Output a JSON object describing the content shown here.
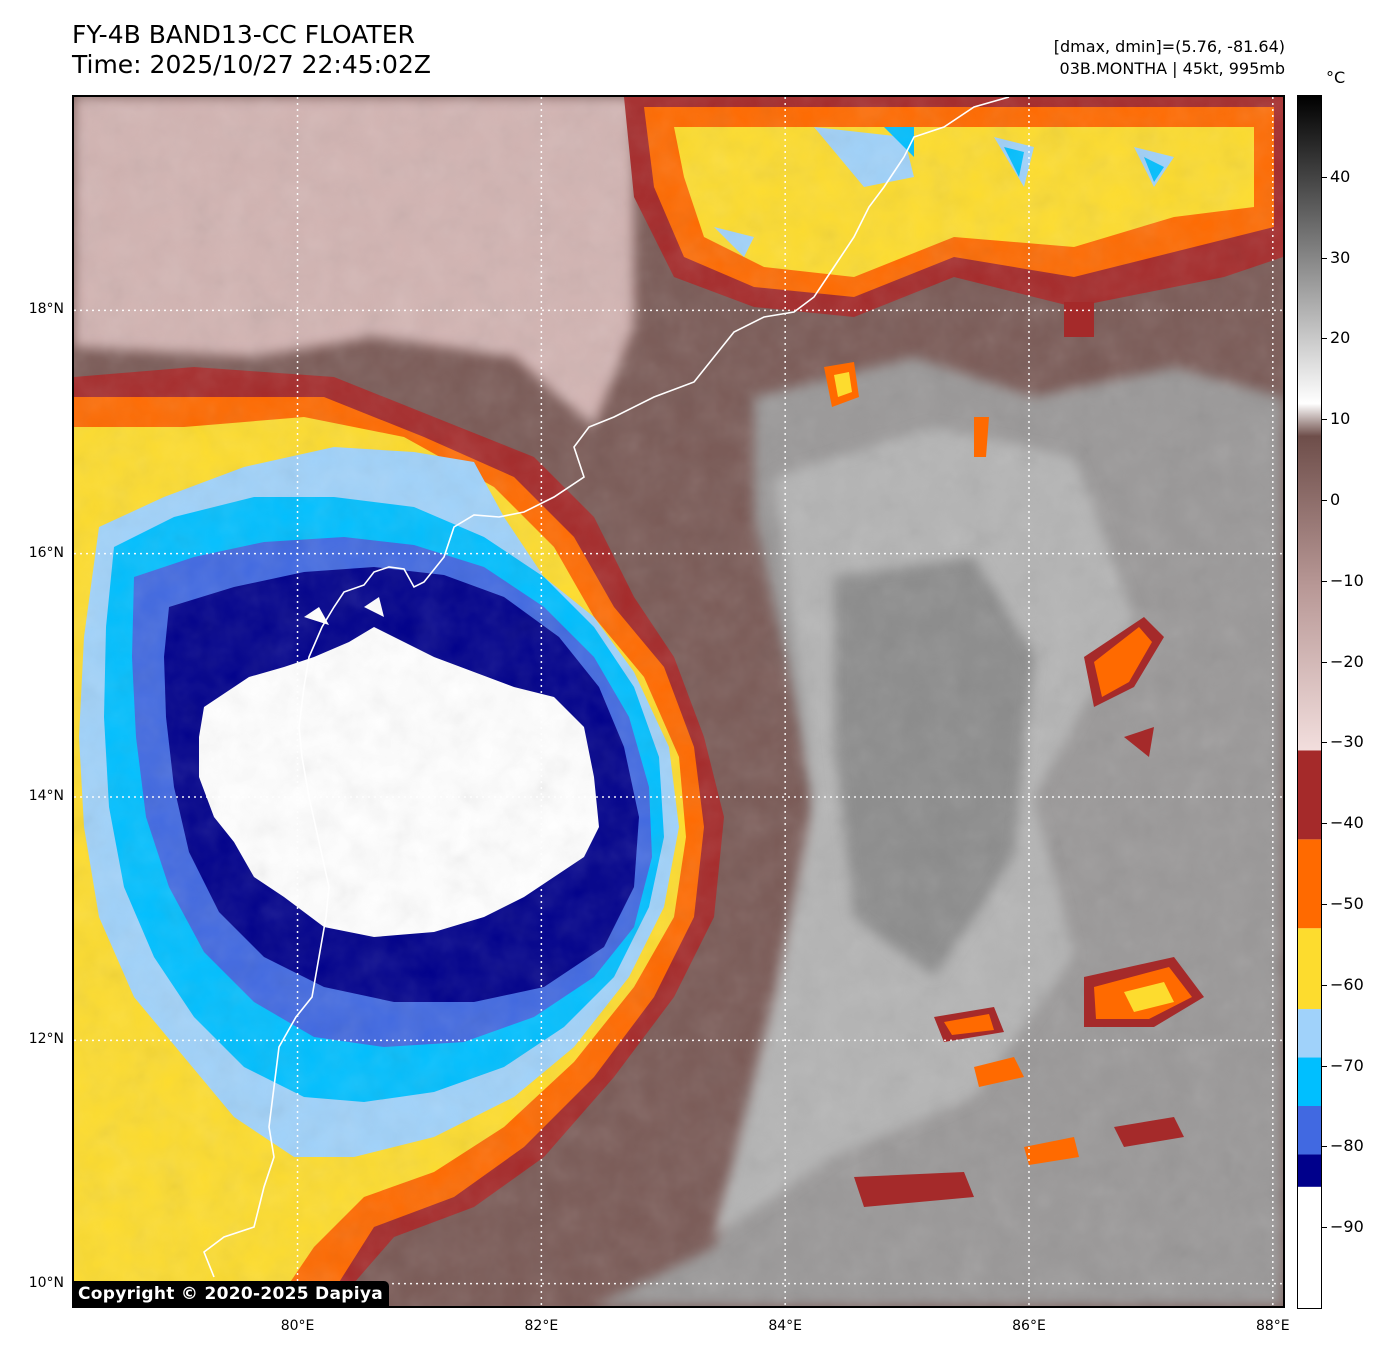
{
  "header": {
    "title_line1": "FY-4B BAND13-CC FLOATER",
    "title_line2": "Time: 2025/10/27 22:45:02Z",
    "range_text": "[dmax, dmin]=(5.76, -81.64)",
    "storm_text": "03B.MONTHA | 45kt, 995mb"
  },
  "map": {
    "lat_labels": [
      "18°N",
      "16°N",
      "14°N",
      "12°N",
      "10°N"
    ],
    "lon_labels": [
      "80°E",
      "82°E",
      "84°E",
      "86°E",
      "88°E"
    ],
    "lat_values": [
      18,
      16,
      14,
      12,
      10
    ],
    "lon_values": [
      80,
      82,
      84,
      86,
      88
    ],
    "lon_range": [
      78.15,
      88.1
    ],
    "lat_range": [
      9.8,
      19.77
    ],
    "grid": "dotted white",
    "coastline_color": "#ffffff"
  },
  "colorbar": {
    "unit": "°C",
    "tick_labels": [
      "40",
      "30",
      "20",
      "10",
      "0",
      "−10",
      "−20",
      "−30",
      "−40",
      "−50",
      "−60",
      "−70",
      "−80",
      "−90"
    ],
    "tick_values": [
      40,
      30,
      20,
      10,
      0,
      -10,
      -20,
      -30,
      -40,
      -50,
      -60,
      -70,
      -80,
      -90
    ],
    "range": [
      -100,
      50
    ],
    "segments": [
      {
        "from": -100,
        "to": -85,
        "color": "#ffffff"
      },
      {
        "from": -85,
        "to": -81,
        "color": "#00008b"
      },
      {
        "from": -81,
        "to": -75,
        "color": "#4169e1"
      },
      {
        "from": -75,
        "to": -69,
        "color": "#00bfff"
      },
      {
        "from": -69,
        "to": -63,
        "color": "#a0d2fa"
      },
      {
        "from": -63,
        "to": -53,
        "color": "#fddc2e"
      },
      {
        "from": -53,
        "to": -42,
        "color": "#ff6a00"
      },
      {
        "from": -42,
        "to": -31,
        "color": "#a52a2a"
      }
    ]
  },
  "copyright": "Copyright © 2020-2025 Dapiya"
}
